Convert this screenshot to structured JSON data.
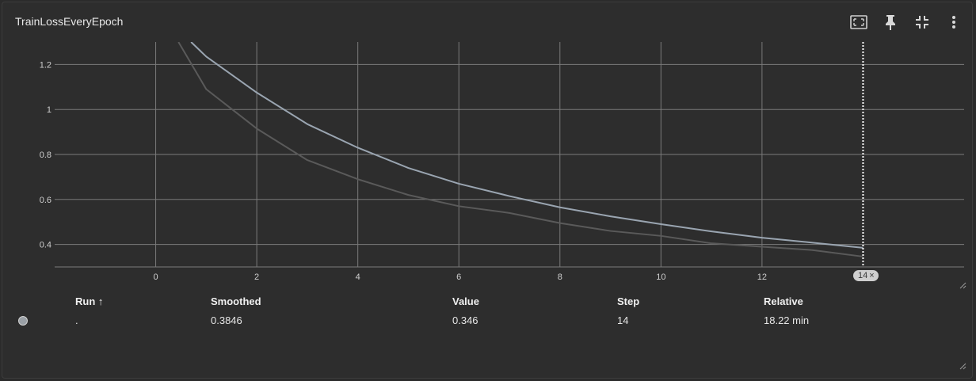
{
  "card": {
    "title": "TrainLossEveryEpoch"
  },
  "toolbar": {
    "icons": [
      "fit-domain-icon",
      "pin-icon",
      "collapse-icon",
      "more-vert-icon"
    ]
  },
  "step_chip": {
    "label": "14",
    "close": "×"
  },
  "chart_data": {
    "type": "line",
    "title": "",
    "xlabel": "",
    "ylabel": "",
    "x_ticks": [
      "0",
      "2",
      "4",
      "6",
      "8",
      "10",
      "12"
    ],
    "y_ticks": [
      "0.4",
      "0.6",
      "0.8",
      "1",
      "1.2"
    ],
    "xlim": [
      -2,
      16
    ],
    "ylim": [
      0.3,
      1.3
    ],
    "grid": true,
    "cursor_step": 14,
    "series": [
      {
        "color": "#9aa5b1",
        "x": [
          0.7,
          1,
          2,
          3,
          4,
          5,
          6,
          7,
          8,
          9,
          10,
          11,
          12,
          13,
          14
        ],
        "y": [
          1.3,
          1.235,
          1.075,
          0.935,
          0.83,
          0.74,
          0.67,
          0.615,
          0.565,
          0.525,
          0.49,
          0.458,
          0.43,
          0.408,
          0.385
        ]
      },
      {
        "color": "#5a5a5a",
        "x": [
          0.45,
          1,
          2,
          3,
          4,
          5,
          6,
          7,
          8,
          9,
          10,
          11,
          12,
          13,
          14
        ],
        "y": [
          1.3,
          1.09,
          0.915,
          0.775,
          0.69,
          0.62,
          0.57,
          0.54,
          0.495,
          0.46,
          0.438,
          0.405,
          0.39,
          0.375,
          0.346
        ]
      }
    ]
  },
  "table": {
    "headers": {
      "run": "Run ↑",
      "smoothed": "Smoothed",
      "value": "Value",
      "step": "Step",
      "relative": "Relative"
    },
    "rows": [
      {
        "run": ".",
        "smoothed": "0.3846",
        "value": "0.346",
        "step": "14",
        "relative": "18.22 min",
        "dot_color": "#9aa0a6"
      }
    ]
  }
}
